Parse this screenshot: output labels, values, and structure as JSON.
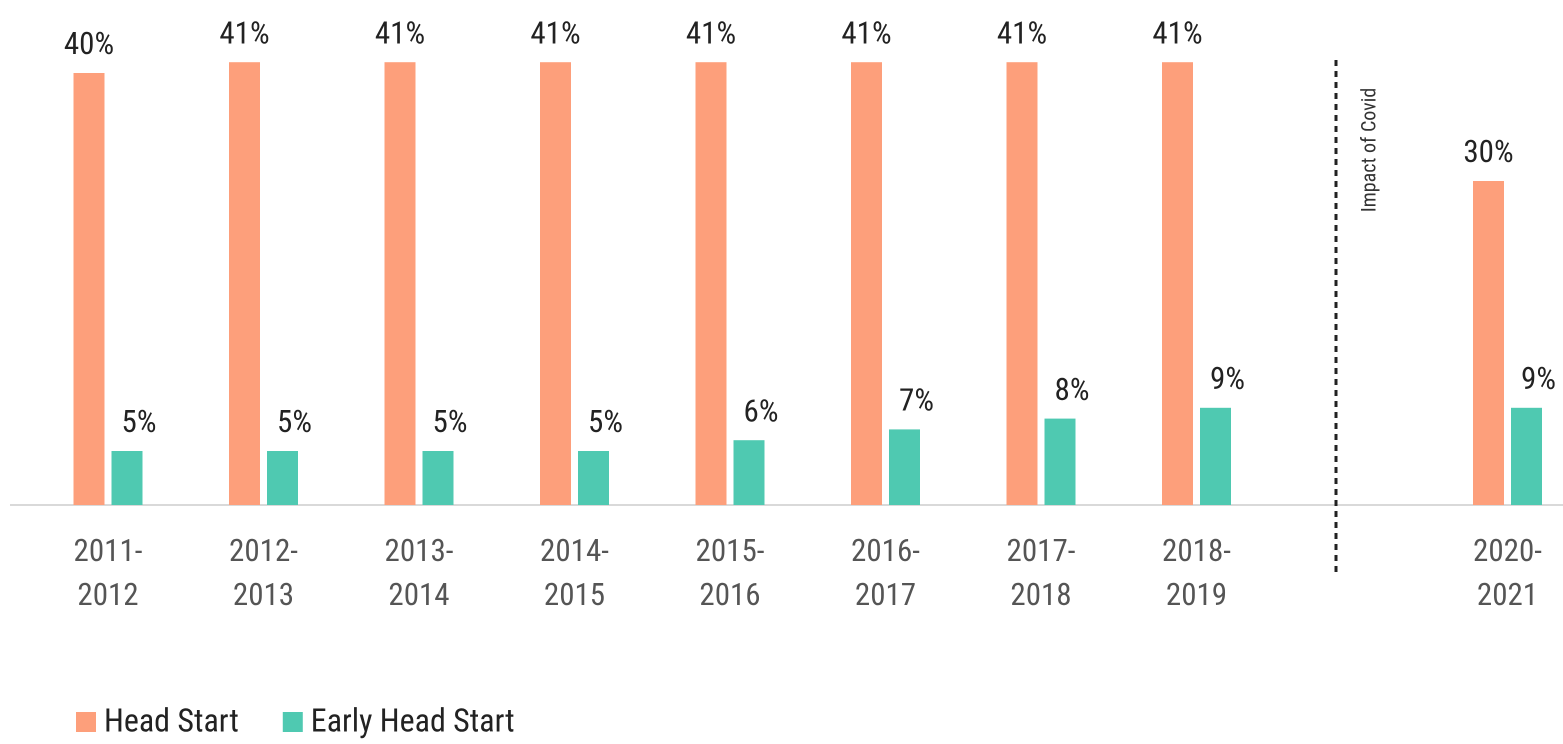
{
  "chart_data": {
    "type": "bar",
    "categories": [
      "2011-2012",
      "2012-2013",
      "2013-2014",
      "2014-2015",
      "2015-2016",
      "2016-2017",
      "2017-2018",
      "2018-2019",
      null,
      "2020-2021"
    ],
    "series": [
      {
        "name": "Head Start",
        "color": "#fd9f7b",
        "values": [
          40,
          41,
          41,
          41,
          41,
          41,
          41,
          41,
          null,
          30
        ],
        "value_labels": [
          "40%",
          "41%",
          "41%",
          "41%",
          "41%",
          "41%",
          "41%",
          "41%",
          null,
          "30%"
        ]
      },
      {
        "name": "Early Head Start",
        "color": "#4fc9b1",
        "values": [
          5,
          5,
          5,
          5,
          6,
          7,
          8,
          9,
          null,
          9
        ],
        "value_labels": [
          "5%",
          "5%",
          "5%",
          "5%",
          "6%",
          "7%",
          "8%",
          "9%",
          null,
          "9%"
        ]
      }
    ],
    "ylim": [
      0,
      45
    ],
    "annotation": "Impact of Covid",
    "grid": false
  }
}
